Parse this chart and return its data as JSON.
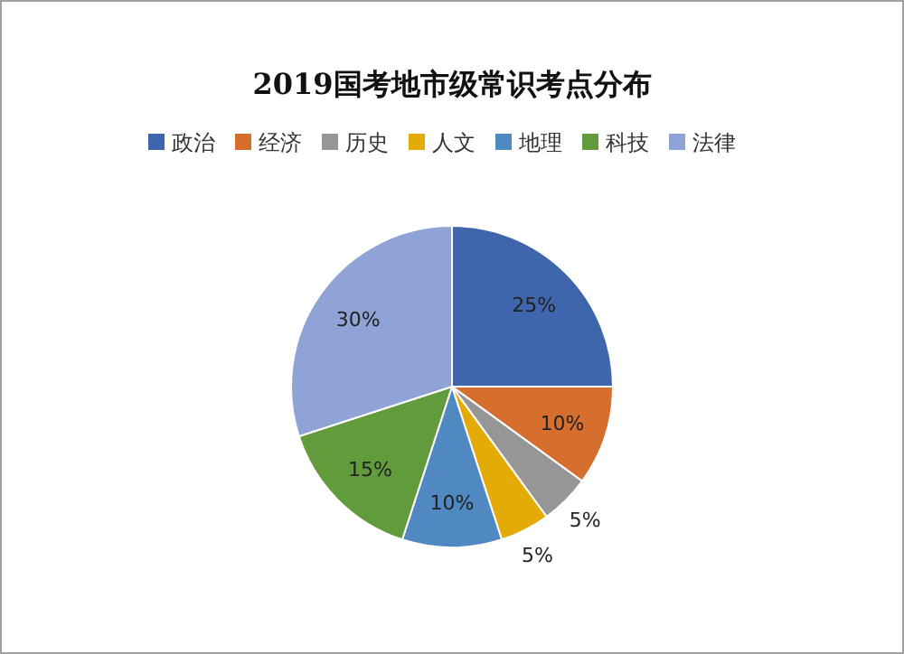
{
  "chart_data": {
    "type": "pie",
    "title": "2019国考地市级常识考点分布",
    "categories": [
      "政治",
      "经济",
      "历史",
      "人文",
      "地理",
      "科技",
      "法律"
    ],
    "values": [
      25,
      10,
      5,
      5,
      10,
      15,
      30
    ],
    "value_labels": [
      "25%",
      "10%",
      "5%",
      "5%",
      "10%",
      "15%",
      "30%"
    ],
    "colors": [
      "#3f66ad",
      "#d66f2e",
      "#969696",
      "#e4aa05",
      "#5088c2",
      "#629b3c",
      "#8fa3d6"
    ],
    "legend": "top"
  }
}
